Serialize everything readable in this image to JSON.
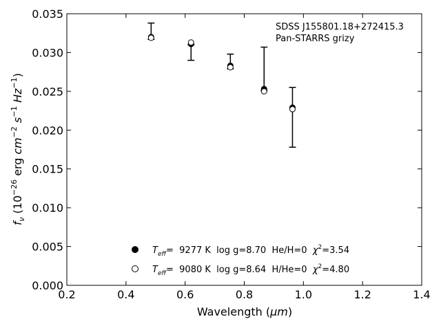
{
  "chart_data": {
    "type": "scatter",
    "title": "",
    "xlabel_main": "Wavelength (",
    "xlabel_unit": "μm",
    "xlabel_close": ")",
    "ylabel": "f_ν (10^−26 erg cm^−2 s^−1 Hz^−1)",
    "xlim": [
      0.2,
      1.4
    ],
    "ylim": [
      0.0,
      0.035
    ],
    "xticks": [
      "0.2",
      "0.4",
      "0.6",
      "0.8",
      "1.0",
      "1.2",
      "1.4"
    ],
    "yticks": [
      "0.000",
      "0.005",
      "0.010",
      "0.015",
      "0.020",
      "0.025",
      "0.030",
      "0.035"
    ],
    "annotation": [
      "SDSS J155801.18+272415.3",
      "Pan-STARRS grizy"
    ],
    "observed": {
      "x": [
        0.485,
        0.62,
        0.753,
        0.867,
        0.963
      ],
      "y": [
        0.0318,
        0.0309,
        0.028,
        0.0252,
        0.0218
      ],
      "yerr_low": [
        0.0001,
        0.0019,
        0.0001,
        0.0001,
        0.004
      ],
      "yerr_high": [
        0.002,
        0.0001,
        0.0018,
        0.0055,
        0.0037
      ]
    },
    "series": [
      {
        "name": "T_eff= 9277 K log g=8.70 He/H=0 χ²=3.54",
        "marker": "filled-circle",
        "x": [
          0.485,
          0.62,
          0.753,
          0.867,
          0.963
        ],
        "y": [
          0.032,
          0.0311,
          0.0283,
          0.0253,
          0.0229
        ]
      },
      {
        "name": "T_eff= 9080 K log g=8.64 H/He=0 χ²=4.80",
        "marker": "open-circle",
        "x": [
          0.485,
          0.62,
          0.753,
          0.867,
          0.963
        ],
        "y": [
          0.0319,
          0.0313,
          0.0281,
          0.025,
          0.0227
        ]
      }
    ],
    "legend": {
      "placement": "lower-center",
      "entries": [
        {
          "teff_sym": "T",
          "teff_sub": "eff",
          "text": "=  9277 K  log g=8.70  He/H=0  ",
          "chi": "χ",
          "chi_sup": "2",
          "chi_val": "=3.54"
        },
        {
          "teff_sym": "T",
          "teff_sub": "eff",
          "text": "=  9080 K  log g=8.64  H/He=0  ",
          "chi": "χ",
          "chi_sup": "2",
          "chi_val": "=4.80"
        }
      ]
    },
    "grid": false
  }
}
